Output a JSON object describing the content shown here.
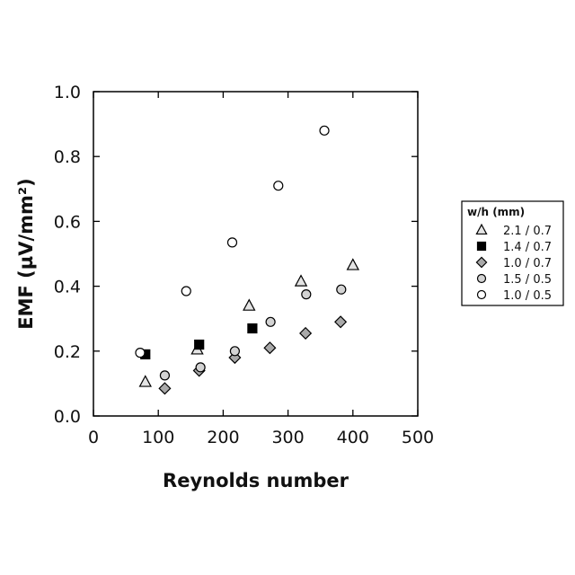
{
  "chart_data": {
    "type": "scatter",
    "title": "",
    "xlabel": "Reynolds number",
    "ylabel": "EMF (µV/mm²)",
    "xlim": [
      0,
      500
    ],
    "ylim": [
      0.0,
      1.0
    ],
    "xticks": [
      "0",
      "100",
      "200",
      "300",
      "400",
      "500"
    ],
    "yticks": [
      "0.0",
      "0.2",
      "0.4",
      "0.6",
      "0.8",
      "1.0"
    ],
    "grid": false,
    "legend": {
      "title": "w/h (mm)",
      "placement": "right"
    },
    "series": [
      {
        "name": "2.1 / 0.7",
        "marker": "triangle",
        "color": "#e4e4e4",
        "points": [
          [
            80,
            0.105
          ],
          [
            160,
            0.205
          ],
          [
            240,
            0.34
          ],
          [
            320,
            0.415
          ],
          [
            400,
            0.465
          ]
        ]
      },
      {
        "name": "1.4 / 0.7",
        "marker": "square",
        "color": "#000000",
        "points": [
          [
            80,
            0.19
          ],
          [
            163,
            0.22
          ],
          [
            245,
            0.27
          ]
        ]
      },
      {
        "name": "1.0 / 0.7",
        "marker": "diamond",
        "color": "#a9a9a9",
        "points": [
          [
            110,
            0.085
          ],
          [
            163,
            0.14
          ],
          [
            218,
            0.18
          ],
          [
            272,
            0.21
          ],
          [
            327,
            0.255
          ],
          [
            381,
            0.29
          ]
        ]
      },
      {
        "name": "1.5 / 0.5",
        "marker": "circle",
        "color": "#d3d3d3",
        "points": [
          [
            110,
            0.125
          ],
          [
            165,
            0.15
          ],
          [
            218,
            0.2
          ],
          [
            273,
            0.29
          ],
          [
            328,
            0.375
          ],
          [
            382,
            0.39
          ]
        ]
      },
      {
        "name": "1.0 / 0.5",
        "marker": "circle",
        "color": "#ffffff",
        "points": [
          [
            72,
            0.195
          ],
          [
            143,
            0.385
          ],
          [
            214,
            0.535
          ],
          [
            285,
            0.71
          ],
          [
            356,
            0.88
          ]
        ]
      }
    ]
  }
}
